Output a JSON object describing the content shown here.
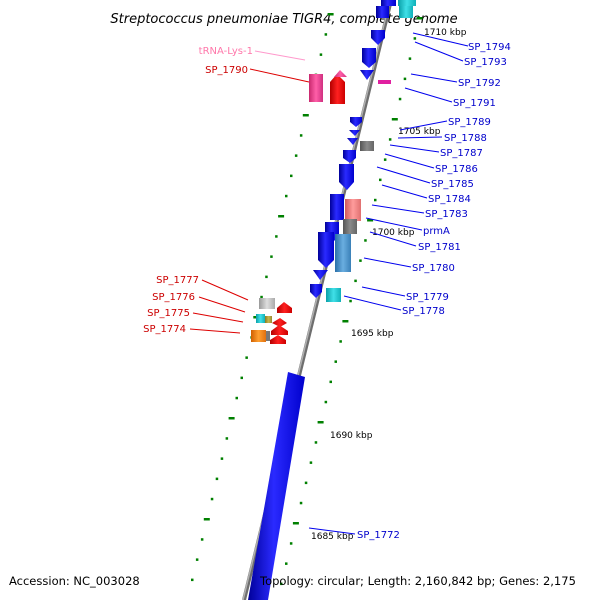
{
  "title": "Streptococcus pneumoniae TIGR4, complete genome",
  "footer": {
    "accession": "Accession: NC_003028",
    "summary": "Topology: circular; Length: 2,160,842 bp; Genes: 2,175"
  },
  "colors": {
    "forward_gene": "#0000ff",
    "reverse_gene": "#ff0000",
    "trna": "#ff69b4",
    "backbone": "#808080",
    "tick": "#008000",
    "forward_label": "#0000cc",
    "reverse_label": "#cc0000",
    "trna_label": "#ff77aa"
  },
  "kbp_marks": [
    "1710 kbp",
    "1705 kbp",
    "1700 kbp",
    "1695 kbp",
    "1690 kbp",
    "1685 kbp"
  ],
  "forward_genes": [
    "SP_1794",
    "SP_1793",
    "SP_1792",
    "SP_1791",
    "SP_1789",
    "SP_1788",
    "SP_1787",
    "SP_1786",
    "SP_1785",
    "SP_1784",
    "SP_1783",
    "prmA",
    "SP_1781",
    "SP_1780",
    "SP_1779",
    "SP_1778",
    "SP_1772"
  ],
  "reverse_genes": [
    "tRNA-Lys-1",
    "SP_1790",
    "SP_1777",
    "SP_1776",
    "SP_1775",
    "SP_1774"
  ]
}
